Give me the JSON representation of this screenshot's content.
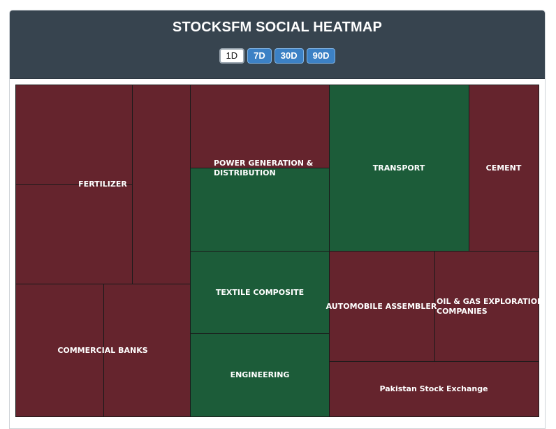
{
  "header": {
    "title": "STOCKSFM SOCIAL HEATMAP"
  },
  "range_buttons": [
    {
      "label": "1D",
      "active": true
    },
    {
      "label": "7D",
      "active": false
    },
    {
      "label": "30D",
      "active": false
    },
    {
      "label": "90D",
      "active": false
    }
  ],
  "colors": {
    "negative": "#65242d",
    "positive": "#1c5c39",
    "header_bg": "#37444f",
    "button_blue": "#3c81c5"
  },
  "sectors": [
    {
      "label": "FERTILIZER",
      "sentiment": "negative"
    },
    {
      "label": "COMMERCIAL BANKS",
      "sentiment": "negative"
    },
    {
      "label": "POWER GENERATION & DISTRIBUTION",
      "line1": "POWER GENERATION &",
      "line2": "DISTRIBUTION",
      "sentiment": "mixed"
    },
    {
      "label": "TEXTILE COMPOSITE",
      "sentiment": "positive"
    },
    {
      "label": "ENGINEERING",
      "sentiment": "positive"
    },
    {
      "label": "TRANSPORT",
      "sentiment": "positive"
    },
    {
      "label": "CEMENT",
      "sentiment": "negative"
    },
    {
      "label": "AUTOMOBILE ASSEMBLER",
      "sentiment": "negative"
    },
    {
      "label": "OIL & GAS EXPLORATION COMPANIES",
      "line1": "OIL & GAS EXPLORATION",
      "line2": "COMPANIES",
      "sentiment": "negative"
    },
    {
      "label": "Pakistan Stock Exchange",
      "sentiment": "negative"
    }
  ]
}
